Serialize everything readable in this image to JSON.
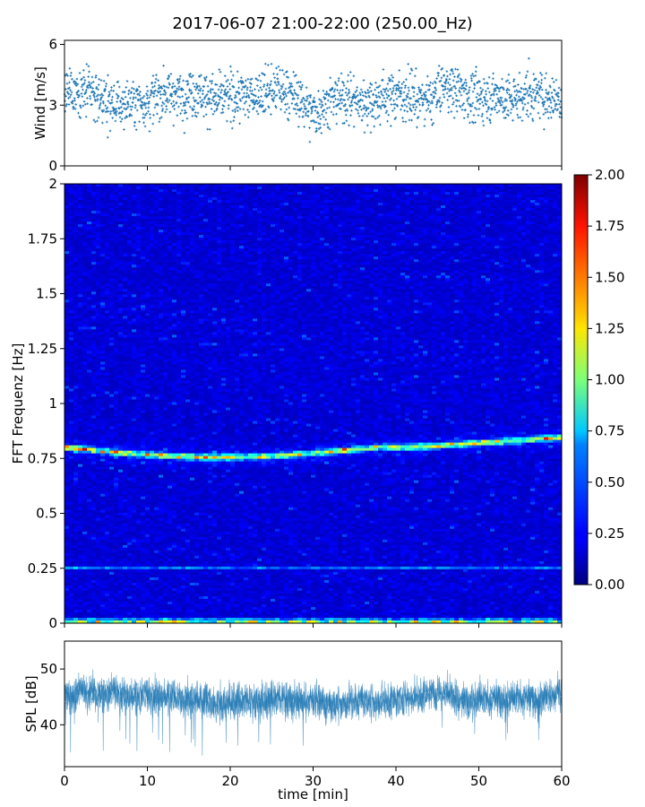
{
  "chart_data": [
    {
      "panel": "wind",
      "type": "scatter",
      "title": "2017-06-07 21:00-22:00 (250.00_Hz)",
      "ylabel": "Wind [m/s]",
      "ylim": [
        0,
        6.2
      ],
      "yticks": [
        "0",
        "3",
        "6"
      ],
      "xlim": [
        0,
        60
      ],
      "color": "#1f77b4",
      "x": [
        0,
        2,
        4,
        6,
        8,
        10,
        12,
        14,
        16,
        18,
        20,
        22,
        24,
        26,
        28,
        30,
        32,
        34,
        36,
        38,
        40,
        42,
        44,
        46,
        48,
        50,
        52,
        54,
        56,
        58,
        60
      ],
      "y": [
        3.6,
        3.8,
        3.4,
        3.0,
        3.1,
        3.2,
        3.6,
        3.5,
        3.7,
        3.3,
        3.4,
        3.5,
        3.6,
        3.8,
        3.4,
        2.6,
        3.2,
        3.4,
        3.1,
        3.3,
        3.6,
        3.4,
        3.2,
        4.0,
        3.6,
        3.3,
        3.5,
        3.2,
        3.6,
        3.4,
        3.3
      ]
    },
    {
      "panel": "spectrogram",
      "type": "heatmap",
      "ylabel": "FFT Frequenz [Hz]",
      "ylim": [
        0,
        2
      ],
      "yticks": [
        "0",
        "0.25",
        "0.5",
        "0.75",
        "1",
        "1.25",
        "1.5",
        "1.75",
        "2"
      ],
      "xlim": [
        0,
        60
      ],
      "colormap": "jet",
      "colorbar": {
        "min": 0,
        "max": 2,
        "ticks": [
          "0.00",
          "0.25",
          "0.50",
          "0.75",
          "1.00",
          "1.25",
          "1.50",
          "1.75",
          "2.00"
        ]
      },
      "bands": [
        {
          "freq_start": 0.8,
          "freq_end": 0.75,
          "level": 1.1
        },
        {
          "freq": 0.25,
          "level": 0.6
        },
        {
          "freq": 0.01,
          "level": 0.9
        }
      ]
    },
    {
      "panel": "spl",
      "type": "line",
      "xlabel": "time [min]",
      "ylabel": "SPL [dB]",
      "xlim": [
        0,
        60
      ],
      "ylim": [
        32.5,
        55
      ],
      "xticks": [
        "0",
        "10",
        "20",
        "30",
        "40",
        "50",
        "60"
      ],
      "yticks": [
        "40",
        "50"
      ],
      "color": "#1f77b4",
      "x": [
        0,
        2,
        4,
        6,
        8,
        10,
        12,
        14,
        16,
        18,
        20,
        22,
        24,
        26,
        28,
        30,
        32,
        34,
        36,
        38,
        40,
        42,
        44,
        46,
        48,
        50,
        52,
        54,
        56,
        58,
        60
      ],
      "y": [
        45,
        46,
        45.5,
        46,
        45,
        45.5,
        45,
        45,
        44.5,
        44,
        44,
        44.5,
        44,
        45,
        44,
        44.5,
        43.5,
        44,
        44.5,
        44,
        44.5,
        45,
        45.5,
        46,
        44,
        45,
        44.5,
        45,
        44.5,
        45,
        45.5
      ]
    }
  ]
}
